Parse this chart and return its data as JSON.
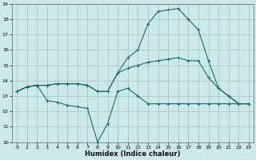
{
  "xlabel": "Humidex (Indice chaleur)",
  "xlim": [
    -0.5,
    23.5
  ],
  "ylim": [
    10,
    19
  ],
  "yticks": [
    10,
    11,
    12,
    13,
    14,
    15,
    16,
    17,
    18,
    19
  ],
  "xticks": [
    0,
    1,
    2,
    3,
    4,
    5,
    6,
    7,
    8,
    9,
    10,
    11,
    12,
    13,
    14,
    15,
    16,
    17,
    18,
    19,
    20,
    21,
    22,
    23
  ],
  "background_color": "#cce8e8",
  "grid_color": "#aacccc",
  "line_color": "#1a6b6b",
  "line1_x": [
    0,
    1,
    2,
    3,
    4,
    5,
    6,
    7,
    8,
    9,
    10,
    11,
    12,
    13,
    14,
    15,
    16,
    17,
    18,
    19,
    20,
    21,
    22,
    23
  ],
  "line1_y": [
    13.3,
    13.6,
    13.7,
    13.7,
    13.8,
    13.8,
    13.8,
    13.7,
    13.3,
    13.3,
    14.5,
    14.8,
    15.0,
    15.2,
    15.3,
    15.4,
    15.5,
    15.3,
    15.3,
    14.2,
    13.5,
    13.0,
    12.5,
    12.5
  ],
  "line2_x": [
    0,
    1,
    2,
    3,
    4,
    5,
    6,
    7,
    8,
    9,
    10,
    11,
    12,
    13,
    14,
    15,
    16,
    17,
    18,
    19,
    20,
    21,
    22,
    23
  ],
  "line2_y": [
    13.3,
    13.6,
    13.7,
    13.7,
    13.8,
    13.8,
    13.8,
    13.7,
    13.3,
    13.3,
    14.5,
    15.5,
    16.0,
    17.7,
    18.5,
    18.6,
    18.7,
    18.0,
    17.3,
    15.3,
    13.5,
    13.0,
    12.5,
    12.5
  ],
  "line3_x": [
    0,
    1,
    2,
    3,
    4,
    5,
    6,
    7,
    8,
    9,
    10,
    11,
    12,
    13,
    14,
    15,
    16,
    17,
    18,
    19,
    20,
    21,
    22,
    23
  ],
  "line3_y": [
    13.3,
    13.6,
    13.7,
    12.7,
    12.6,
    12.4,
    12.3,
    12.2,
    10.0,
    11.2,
    13.3,
    13.5,
    13.0,
    12.5,
    12.5,
    12.5,
    12.5,
    12.5,
    12.5,
    12.5,
    12.5,
    12.5,
    12.5,
    12.5
  ]
}
